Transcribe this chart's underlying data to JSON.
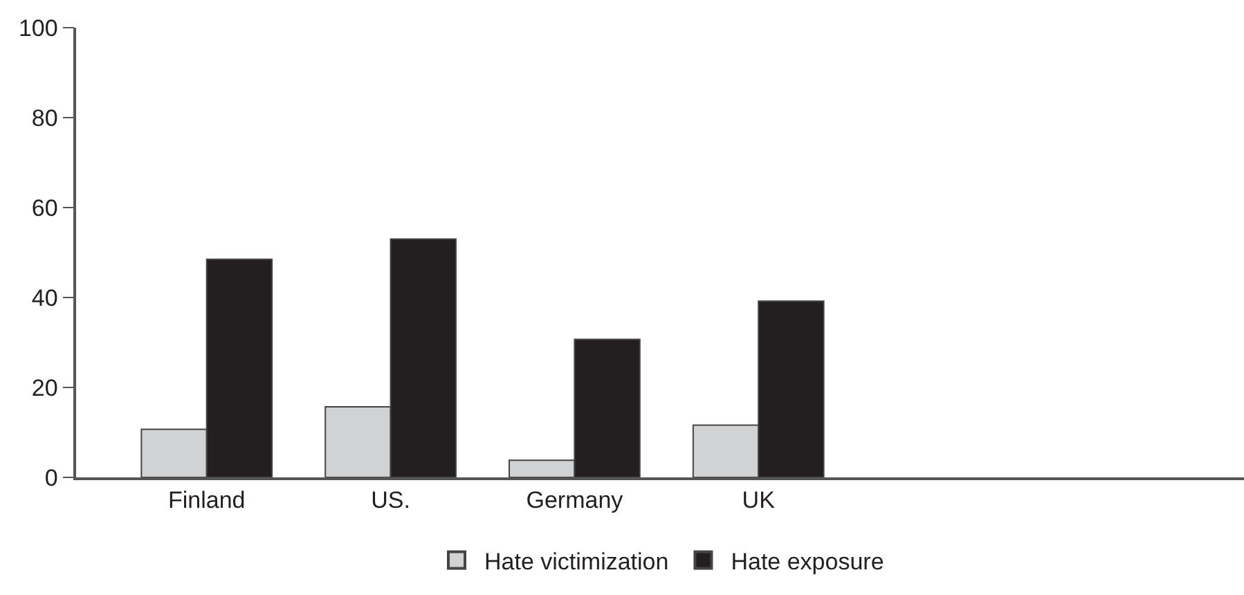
{
  "chart_data": {
    "type": "bar",
    "categories": [
      "Finland",
      "US.",
      "Germany",
      "UK"
    ],
    "series": [
      {
        "name": "Hate victimization",
        "color": "#d1d2d4",
        "values": [
          10.7,
          15.7,
          3.8,
          11.6
        ]
      },
      {
        "name": "Hate exposure",
        "color": "#231f20",
        "values": [
          48.5,
          53.0,
          30.7,
          39.2
        ]
      }
    ],
    "ylim": [
      0,
      100
    ],
    "yticks": [
      0,
      20,
      40,
      60,
      80,
      100
    ],
    "legend": "bottom"
  }
}
